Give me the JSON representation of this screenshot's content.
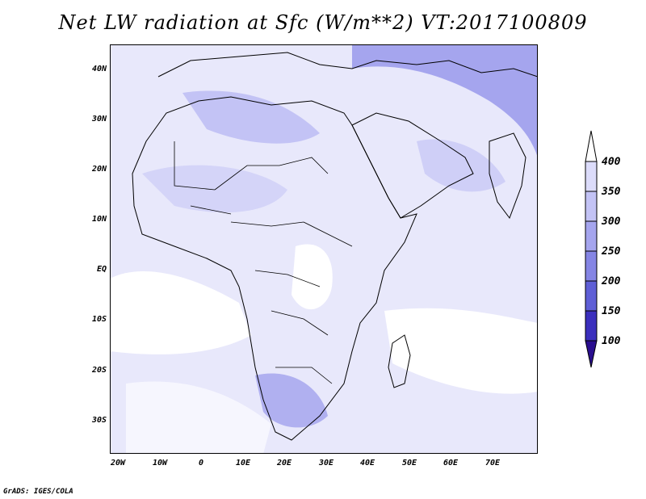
{
  "title": "Net LW radiation at Sfc (W/m**2) VT:2017100809",
  "credit": "GrADS: IGES/COLA",
  "map": {
    "lat_labels": [
      "40N",
      "30N",
      "20N",
      "10N",
      "EQ",
      "10S",
      "20S",
      "30S"
    ],
    "lon_labels": [
      "20W",
      "10W",
      "0",
      "10E",
      "20E",
      "30E",
      "40E",
      "50E",
      "60E",
      "70E"
    ]
  },
  "legend": {
    "labels": [
      "400",
      "350",
      "300",
      "250",
      "200",
      "150",
      "100"
    ],
    "colors": [
      "#ffffff",
      "#dcdcfa",
      "#c3c3f5",
      "#a5a5ee",
      "#8585e4",
      "#5f5fd6",
      "#3b2fbd",
      "#2a0e8f"
    ]
  }
}
